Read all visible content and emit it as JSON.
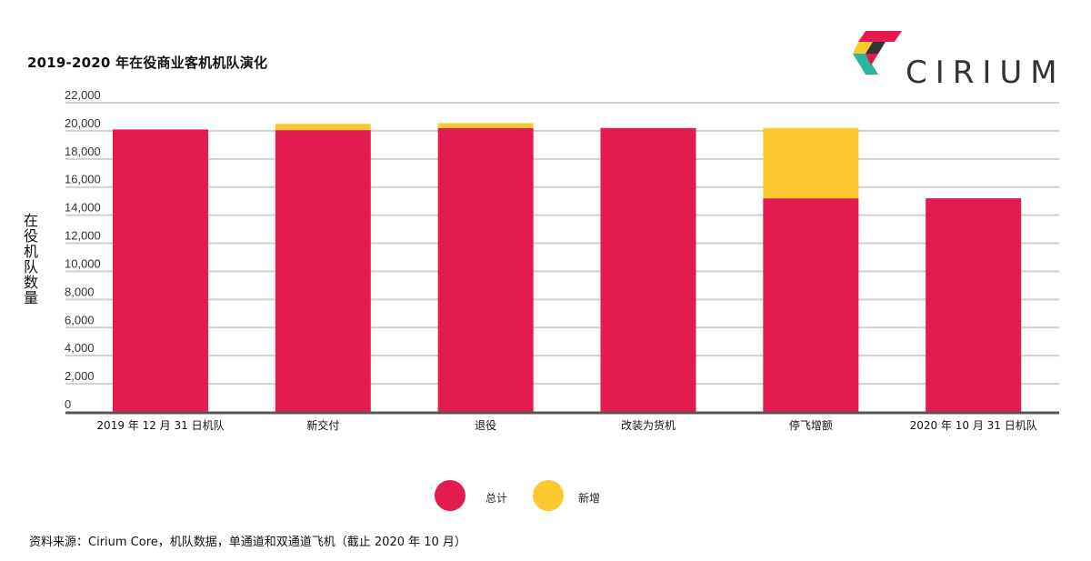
{
  "chart_data": {
    "type": "bar",
    "stacked": true,
    "title": "2019-2020 年在役商业客机机队演化",
    "ylabel": "在役机队数量",
    "ylim": [
      0,
      22000
    ],
    "yticks": [
      {
        "value": 22000,
        "label": "22,000"
      },
      {
        "value": 20000,
        "label": "20,000"
      },
      {
        "value": 18000,
        "label": "18,000"
      },
      {
        "value": 16000,
        "label": "16,000"
      },
      {
        "value": 14000,
        "label": "14,000"
      },
      {
        "value": 12000,
        "label": "12,000"
      },
      {
        "value": 10000,
        "label": "10,000"
      },
      {
        "value": 8000,
        "label": "8,000"
      },
      {
        "value": 6000,
        "label": "6,000"
      },
      {
        "value": 4000,
        "label": "4,000"
      },
      {
        "value": 2000,
        "label": "2,000"
      },
      {
        "value": 0,
        "label": "0"
      }
    ],
    "grid": true,
    "legend_position": "bottom",
    "categories": [
      "2019 年 12 月 31 日机队",
      "新交付",
      "退役",
      "改装为货机",
      "停飞增额",
      "2020 年 10 月 31 日机队"
    ],
    "series": [
      {
        "name": "总计",
        "color": "#E31B4E",
        "values": [
          20100,
          20050,
          20200,
          20200,
          15200,
          15200
        ]
      },
      {
        "name": "新增",
        "color": "#FDC92F",
        "values": [
          0,
          450,
          350,
          0,
          5000,
          0
        ]
      }
    ],
    "source": "资料来源：Cirium Core，机队数据，单通道和双通道飞机（截止 2020 年 10 月）"
  },
  "logo": {
    "text": "CIRIUM",
    "colors": [
      "#E31B4E",
      "#FDC92F",
      "#2BB5A0",
      "#333333"
    ]
  }
}
